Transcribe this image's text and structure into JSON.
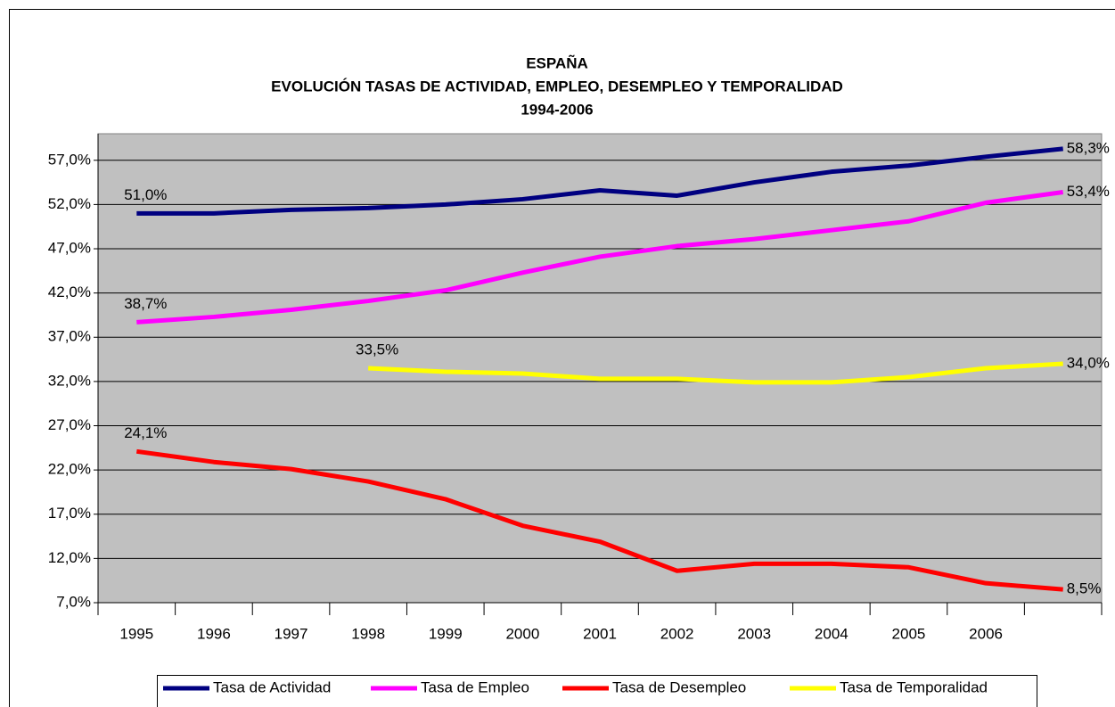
{
  "chart_data": {
    "type": "line",
    "title": [
      "ESPAÑA",
      "EVOLUCIÓN TASAS DE ACTIVIDAD, EMPLEO, DESEMPLEO Y TEMPORALIDAD",
      "1994-2006"
    ],
    "categories": [
      "1995",
      "1996",
      "1997",
      "1998",
      "1999",
      "2000",
      "2001",
      "2002",
      "2003",
      "2004",
      "2005",
      "2006",
      null
    ],
    "series": [
      {
        "name": "Tasa de Actividad",
        "color": "#000080",
        "values": [
          51.0,
          51.0,
          51.4,
          51.6,
          52.0,
          52.6,
          53.6,
          53.0,
          54.5,
          55.7,
          56.4,
          57.4,
          58.3
        ],
        "value_labels": [
          "51,0%",
          null,
          null,
          null,
          null,
          null,
          null,
          null,
          null,
          null,
          null,
          null,
          "58,3%"
        ]
      },
      {
        "name": "Tasa de Empleo",
        "color": "#ff00ff",
        "values": [
          38.7,
          39.3,
          40.1,
          41.1,
          42.3,
          44.3,
          46.1,
          47.3,
          48.1,
          49.1,
          50.1,
          52.2,
          53.4
        ],
        "value_labels": [
          "38,7%",
          null,
          null,
          null,
          null,
          null,
          null,
          null,
          null,
          null,
          null,
          null,
          "53,4%"
        ]
      },
      {
        "name": "Tasa de Desempleo",
        "color": "#ff0000",
        "values": [
          24.1,
          22.9,
          22.1,
          20.7,
          18.7,
          15.7,
          13.9,
          10.6,
          11.4,
          11.4,
          11.0,
          9.2,
          8.5
        ],
        "value_labels": [
          "24,1%",
          null,
          null,
          null,
          null,
          null,
          null,
          null,
          null,
          null,
          null,
          null,
          "8,5%"
        ]
      },
      {
        "name": "Tasa de Temporalidad",
        "color": "#ffff00",
        "values": [
          null,
          null,
          null,
          33.5,
          33.1,
          32.9,
          32.3,
          32.3,
          31.9,
          31.9,
          32.5,
          33.5,
          34.0
        ],
        "value_labels": [
          null,
          null,
          null,
          "33,5%",
          null,
          null,
          null,
          null,
          null,
          null,
          null,
          null,
          "34,0%"
        ]
      }
    ],
    "ylim": [
      7,
      60
    ],
    "yticks": [
      {
        "value": 7,
        "label": "7,0%"
      },
      {
        "value": 12,
        "label": "12,0%"
      },
      {
        "value": 17,
        "label": "17,0%"
      },
      {
        "value": 22,
        "label": "22,0%"
      },
      {
        "value": 27,
        "label": "27,0%"
      },
      {
        "value": 32,
        "label": "32,0%"
      },
      {
        "value": 37,
        "label": "37,0%"
      },
      {
        "value": 42,
        "label": "42,0%"
      },
      {
        "value": 47,
        "label": "47,0%"
      },
      {
        "value": 52,
        "label": "52,0%"
      },
      {
        "value": 57,
        "label": "57,0%"
      }
    ],
    "grid": true,
    "legend": "bottom"
  }
}
